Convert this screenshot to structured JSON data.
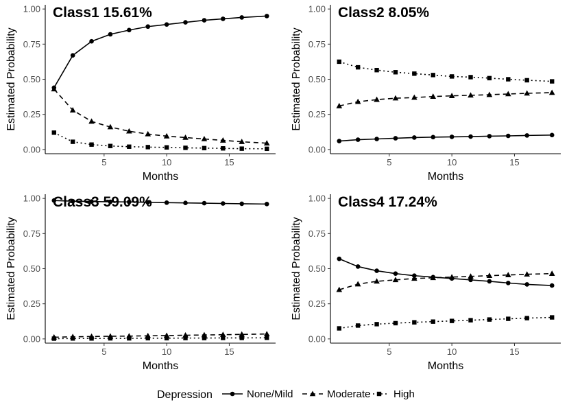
{
  "chart_data": {
    "type": "line",
    "x_label": "Months",
    "y_label": "Estimated Probability",
    "x_ticks": [
      5,
      10,
      15
    ],
    "y_ticks": [
      "0.00",
      "0.25",
      "0.50",
      "0.75",
      "1.00"
    ],
    "y_tick_values": [
      0,
      0.25,
      0.5,
      0.75,
      1.0
    ],
    "xlim": [
      0.3,
      18.7
    ],
    "ylim": [
      -0.03,
      1.03
    ],
    "x": [
      1,
      2.5,
      4,
      5.5,
      7,
      8.5,
      10,
      11.5,
      13,
      14.5,
      16,
      18
    ],
    "legend": {
      "title": "Depression",
      "entries": [
        {
          "name": "None/Mild",
          "marker": "circle",
          "dash": "solid"
        },
        {
          "name": "Moderate",
          "marker": "triangle",
          "dash": "dashed"
        },
        {
          "name": "High",
          "marker": "square",
          "dash": "dotted"
        }
      ]
    },
    "panels": [
      {
        "title": "Class1 15.61%",
        "series": [
          {
            "name": "None/Mild",
            "values": [
              0.44,
              0.67,
              0.77,
              0.82,
              0.85,
              0.875,
              0.89,
              0.905,
              0.92,
              0.93,
              0.94,
              0.95
            ]
          },
          {
            "name": "Moderate",
            "values": [
              0.43,
              0.28,
              0.2,
              0.16,
              0.13,
              0.11,
              0.095,
              0.085,
              0.075,
              0.065,
              0.055,
              0.045
            ]
          },
          {
            "name": "High",
            "values": [
              0.12,
              0.055,
              0.035,
              0.025,
              0.02,
              0.017,
              0.015,
              0.012,
              0.01,
              0.008,
              0.006,
              0.005
            ]
          }
        ]
      },
      {
        "title": "Class2 8.05%",
        "series": [
          {
            "name": "None/Mild",
            "values": [
              0.06,
              0.07,
              0.075,
              0.08,
              0.085,
              0.088,
              0.09,
              0.092,
              0.095,
              0.097,
              0.1,
              0.103
            ]
          },
          {
            "name": "Moderate",
            "values": [
              0.31,
              0.34,
              0.355,
              0.365,
              0.37,
              0.377,
              0.382,
              0.386,
              0.39,
              0.395,
              0.4,
              0.405
            ]
          },
          {
            "name": "High",
            "values": [
              0.625,
              0.585,
              0.565,
              0.55,
              0.54,
              0.53,
              0.52,
              0.515,
              0.508,
              0.5,
              0.493,
              0.485
            ]
          }
        ]
      },
      {
        "title": "Class3 59.09%",
        "series": [
          {
            "name": "None/Mild",
            "values": [
              0.985,
              0.98,
              0.978,
              0.976,
              0.975,
              0.972,
              0.97,
              0.968,
              0.966,
              0.964,
              0.962,
              0.96
            ]
          },
          {
            "name": "Moderate",
            "values": [
              0.012,
              0.015,
              0.017,
              0.019,
              0.02,
              0.022,
              0.024,
              0.026,
              0.028,
              0.03,
              0.032,
              0.035
            ]
          },
          {
            "name": "High",
            "values": [
              0.002,
              0.003,
              0.003,
              0.004,
              0.004,
              0.005,
              0.005,
              0.006,
              0.006,
              0.007,
              0.007,
              0.008
            ]
          }
        ]
      },
      {
        "title": "Class4 17.24%",
        "series": [
          {
            "name": "None/Mild",
            "values": [
              0.57,
              0.515,
              0.485,
              0.465,
              0.45,
              0.44,
              0.43,
              0.42,
              0.41,
              0.398,
              0.388,
              0.38
            ]
          },
          {
            "name": "Moderate",
            "values": [
              0.35,
              0.39,
              0.41,
              0.42,
              0.43,
              0.435,
              0.44,
              0.445,
              0.45,
              0.455,
              0.46,
              0.465
            ]
          },
          {
            "name": "High",
            "values": [
              0.075,
              0.095,
              0.105,
              0.112,
              0.118,
              0.123,
              0.128,
              0.133,
              0.138,
              0.143,
              0.148,
              0.153
            ]
          }
        ]
      }
    ]
  }
}
